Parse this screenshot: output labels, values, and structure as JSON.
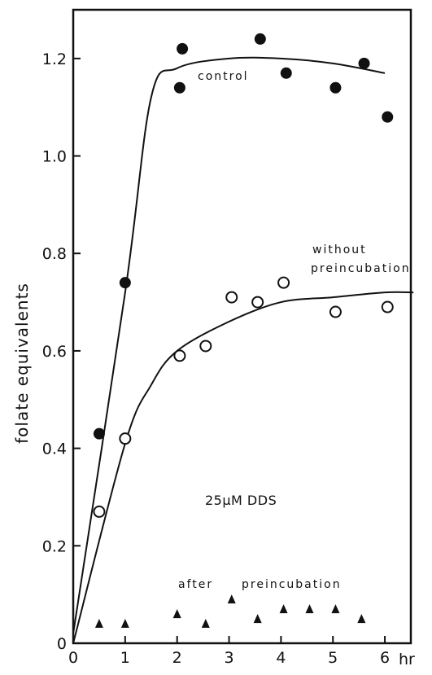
{
  "chart_data": {
    "type": "scatter",
    "title": "",
    "xlabel": "hr",
    "ylabel": "folate equivalents",
    "xlim": [
      0,
      6.5
    ],
    "ylim": [
      0,
      1.3
    ],
    "grid": false,
    "x_ticks": [
      "0",
      "1",
      "2",
      "3",
      "4",
      "5",
      "6"
    ],
    "y_ticks": [
      "0",
      "0.2",
      "0.4",
      "0.6",
      "0.8",
      "1.0",
      "1.2"
    ],
    "annotations": {
      "condition": "25µM DDS"
    },
    "series": [
      {
        "name": "control",
        "marker": "filled-circle",
        "points": [
          {
            "x": 0.5,
            "y": 0.43
          },
          {
            "x": 1.0,
            "y": 0.74
          },
          {
            "x": 2.05,
            "y": 1.14
          },
          {
            "x": 2.1,
            "y": 1.22
          },
          {
            "x": 3.6,
            "y": 1.24
          },
          {
            "x": 4.1,
            "y": 1.17
          },
          {
            "x": 5.05,
            "y": 1.14
          },
          {
            "x": 5.6,
            "y": 1.19
          },
          {
            "x": 6.05,
            "y": 1.08
          }
        ],
        "fit": [
          {
            "x": 0,
            "y": 0.02
          },
          {
            "x": 1.0,
            "y": 0.72
          },
          {
            "x": 1.5,
            "y": 1.12
          },
          {
            "x": 2.0,
            "y": 1.18
          },
          {
            "x": 3.0,
            "y": 1.2
          },
          {
            "x": 4.0,
            "y": 1.2
          },
          {
            "x": 5.0,
            "y": 1.19
          },
          {
            "x": 6.0,
            "y": 1.17
          }
        ]
      },
      {
        "name": "without preincubation",
        "marker": "open-circle",
        "points": [
          {
            "x": 0.5,
            "y": 0.27
          },
          {
            "x": 1.0,
            "y": 0.42
          },
          {
            "x": 2.05,
            "y": 0.59
          },
          {
            "x": 2.55,
            "y": 0.61
          },
          {
            "x": 3.05,
            "y": 0.71
          },
          {
            "x": 3.55,
            "y": 0.7
          },
          {
            "x": 4.05,
            "y": 0.74
          },
          {
            "x": 5.05,
            "y": 0.68
          },
          {
            "x": 6.05,
            "y": 0.69
          }
        ],
        "fit": [
          {
            "x": 0,
            "y": 0.0
          },
          {
            "x": 1.0,
            "y": 0.41
          },
          {
            "x": 1.5,
            "y": 0.53
          },
          {
            "x": 2.0,
            "y": 0.6
          },
          {
            "x": 3.0,
            "y": 0.66
          },
          {
            "x": 4.0,
            "y": 0.7
          },
          {
            "x": 5.0,
            "y": 0.71
          },
          {
            "x": 6.0,
            "y": 0.72
          },
          {
            "x": 6.55,
            "y": 0.72
          }
        ]
      },
      {
        "name": "after preincubation",
        "marker": "filled-triangle",
        "points": [
          {
            "x": 0.5,
            "y": 0.04
          },
          {
            "x": 1.0,
            "y": 0.04
          },
          {
            "x": 2.0,
            "y": 0.06
          },
          {
            "x": 2.55,
            "y": 0.04
          },
          {
            "x": 3.05,
            "y": 0.09
          },
          {
            "x": 3.55,
            "y": 0.05
          },
          {
            "x": 4.05,
            "y": 0.07
          },
          {
            "x": 4.55,
            "y": 0.07
          },
          {
            "x": 5.05,
            "y": 0.07
          },
          {
            "x": 5.55,
            "y": 0.05
          }
        ]
      }
    ]
  }
}
